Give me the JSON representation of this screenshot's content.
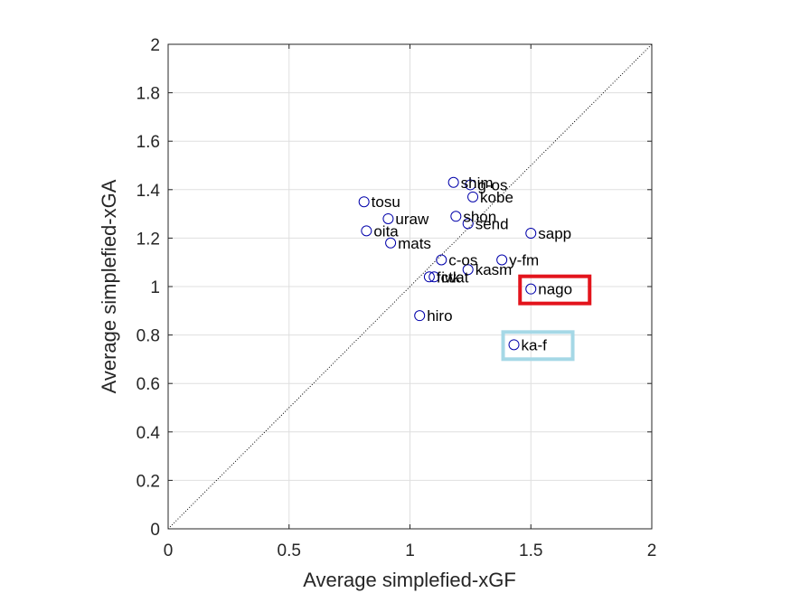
{
  "chart_data": {
    "type": "scatter",
    "title": "",
    "xlabel": "Average simplefied-xGF",
    "ylabel": "Average simplefied-xGA",
    "xlim": [
      0,
      2
    ],
    "ylim": [
      0,
      2
    ],
    "xticks": [
      "0",
      "0.5",
      "1",
      "1.5",
      "2"
    ],
    "yticks": [
      "0",
      "0.2",
      "0.4",
      "0.6",
      "0.8",
      "1",
      "1.2",
      "1.4",
      "1.6",
      "1.8",
      "2"
    ],
    "grid": true,
    "reference_line": "y = x",
    "marker_color": "#0000aa",
    "points": [
      {
        "label": "shim",
        "x": 1.18,
        "y": 1.43
      },
      {
        "label": "g-os",
        "x": 1.25,
        "y": 1.42
      },
      {
        "label": "kobe",
        "x": 1.26,
        "y": 1.37
      },
      {
        "label": "tosu",
        "x": 0.81,
        "y": 1.35
      },
      {
        "label": "uraw",
        "x": 0.91,
        "y": 1.28
      },
      {
        "label": "shon",
        "x": 1.19,
        "y": 1.29
      },
      {
        "label": "send",
        "x": 1.24,
        "y": 1.26
      },
      {
        "label": "oita",
        "x": 0.82,
        "y": 1.23
      },
      {
        "label": "sapp",
        "x": 1.5,
        "y": 1.22
      },
      {
        "label": "mats",
        "x": 0.92,
        "y": 1.18
      },
      {
        "label": "c-os",
        "x": 1.13,
        "y": 1.11
      },
      {
        "label": "y-fm",
        "x": 1.38,
        "y": 1.11
      },
      {
        "label": "kasm",
        "x": 1.24,
        "y": 1.07
      },
      {
        "label": "fctk",
        "x": 1.08,
        "y": 1.04
      },
      {
        "label": "iwat",
        "x": 1.1,
        "y": 1.04
      },
      {
        "label": "nago",
        "x": 1.5,
        "y": 0.99
      },
      {
        "label": "hiro",
        "x": 1.04,
        "y": 0.88
      },
      {
        "label": "ka-f",
        "x": 1.43,
        "y": 0.76
      }
    ],
    "highlights": [
      {
        "label": "nago",
        "color": "#e3141c"
      },
      {
        "label": "ka-f",
        "color": "#a5d8e6"
      }
    ]
  }
}
